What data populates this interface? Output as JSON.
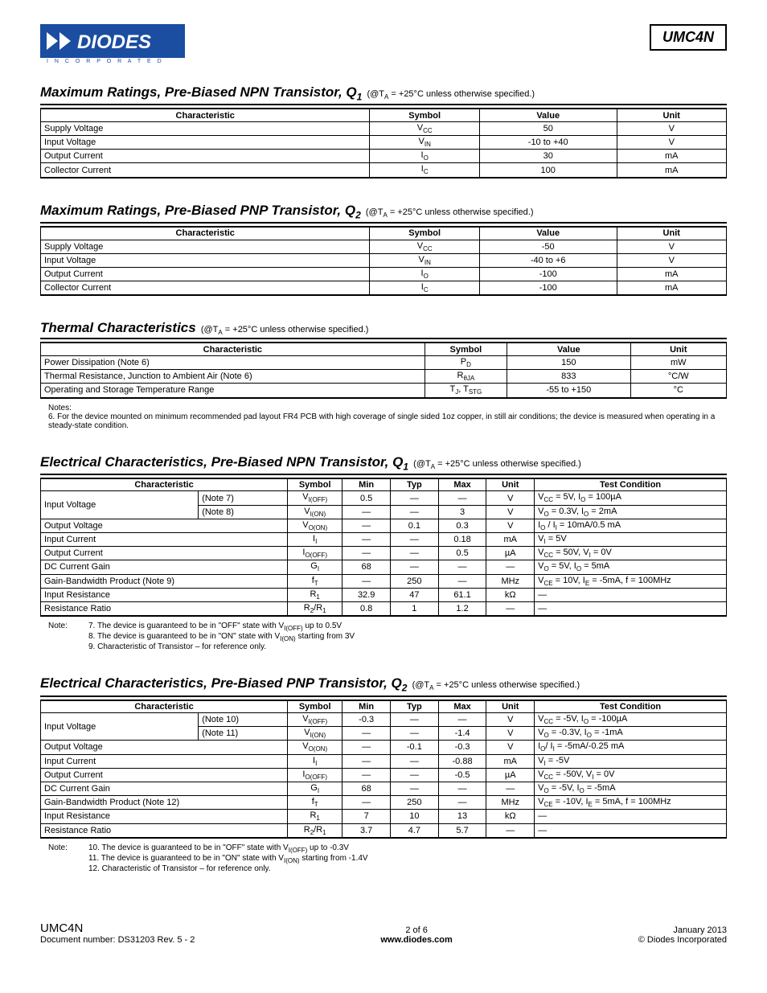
{
  "header": {
    "logo_text_top": "DIODES",
    "logo_text_bottom": "I N C O R P O R A T E D",
    "logo_colors": {
      "bg": "#1b4da0",
      "text": "#ffffff"
    },
    "part_number": "UMC4N"
  },
  "sections": {
    "q1max": {
      "title_html": "Maximum Ratings, Pre-Biased NPN Transistor, Q<sub>1</sub>",
      "cond_html": "(@T<sub>A</sub> = +25°C unless otherwise specified.)",
      "cols": [
        "Characteristic",
        "Symbol",
        "Value",
        "Unit"
      ],
      "col_widths": [
        "48%",
        "16%",
        "20%",
        "16%"
      ],
      "rows": [
        {
          "c": "Supply Voltage",
          "s": "V<sub>CC</sub>",
          "v": "50",
          "u": "V"
        },
        {
          "c": "Input Voltage",
          "s": "V<sub>IN</sub>",
          "v": "-10 to +40",
          "u": "V"
        },
        {
          "c": "Output Current",
          "s": "I<sub>O</sub>",
          "v": "30",
          "u": "mA"
        },
        {
          "c": "Collector Current",
          "s": "I<sub>C</sub>",
          "v": "100",
          "u": "mA"
        }
      ]
    },
    "q2max": {
      "title_html": "Maximum Ratings, Pre-Biased PNP Transistor, Q<sub>2</sub>",
      "cond_html": "(@T<sub>A</sub> = +25°C unless otherwise specified.)",
      "cols": [
        "Characteristic",
        "Symbol",
        "Value",
        "Unit"
      ],
      "col_widths": [
        "48%",
        "16%",
        "20%",
        "16%"
      ],
      "rows": [
        {
          "c": "Supply Voltage",
          "s": "V<sub>CC</sub>",
          "v": "-50",
          "u": "V"
        },
        {
          "c": "Input Voltage",
          "s": "V<sub>IN</sub>",
          "v": "-40 to +6",
          "u": "V"
        },
        {
          "c": "Output Current",
          "s": "I<sub>O</sub>",
          "v": "-100",
          "u": "mA"
        },
        {
          "c": "Collector Current",
          "s": "I<sub>C</sub>",
          "v": "-100",
          "u": "mA"
        }
      ]
    },
    "thermal": {
      "title_html": "Thermal Characteristics",
      "cond_html": "(@T<sub>A</sub> = +25°C unless otherwise specified.)",
      "cols": [
        "Characteristic",
        "Symbol",
        "Value",
        "Unit"
      ],
      "col_widths": [
        "56%",
        "12%",
        "18%",
        "14%"
      ],
      "rows": [
        {
          "c": "Power Dissipation (Note 6)",
          "s": "P<sub>D</sub>",
          "v": "150",
          "u": "mW"
        },
        {
          "c": "Thermal Resistance, Junction to Ambient Air (Note 6)",
          "s": "R<sub>θJA</sub>",
          "v": "833",
          "u": "°C/W"
        },
        {
          "c": "Operating and Storage Temperature Range",
          "s": "T<sub>J</sub>, T<sub>STG</sub>",
          "v": "-55 to +150",
          "u": "°C"
        }
      ],
      "notes_label": "Notes:",
      "notes": [
        "6. For the device mounted on minimum recommended pad layout FR4 PCB with high coverage of single sided 1oz copper, in still air conditions; the device is measured when operating in a steady-state condition."
      ]
    },
    "q1elec": {
      "title_html": "Electrical Characteristics, Pre-Biased NPN Transistor, Q<sub>1</sub>",
      "cond_html": "(@T<sub>A</sub> = +25°C unless otherwise specified.)",
      "cols": [
        "Characteristic",
        "Symbol",
        "Min",
        "Typ",
        "Max",
        "Unit",
        "Test Condition"
      ],
      "col_widths": [
        "23%",
        "13%",
        "8%",
        "7%",
        "7%",
        "7%",
        "7%",
        "28%"
      ],
      "rows": [
        {
          "c": "Input Voltage",
          "note": "(Note 7)",
          "s": "V<sub>I(OFF)</sub>",
          "min": "0.5",
          "typ": "—",
          "max": "—",
          "u": "V",
          "tc": "V<sub>CC</sub> = 5V, I<sub>O</sub> = 100µA",
          "rowspan": 2
        },
        {
          "note": "(Note 8)",
          "s": "V<sub>I(ON)</sub>",
          "min": "—",
          "typ": "—",
          "max": "3",
          "u": "V",
          "tc": "V<sub>O</sub> = 0.3V, I<sub>O</sub> = 2mA"
        },
        {
          "c": "Output Voltage",
          "s": "V<sub>O(ON)</sub>",
          "min": "—",
          "typ": "0.1",
          "max": "0.3",
          "u": "V",
          "tc": "I<sub>O</sub> / I<sub>I</sub> = 10mA/0.5 mA"
        },
        {
          "c": "Input Current",
          "s": "I<sub>I</sub>",
          "min": "—",
          "typ": "—",
          "max": "0.18",
          "u": "mA",
          "tc": "V<sub>I</sub> = 5V"
        },
        {
          "c": "Output Current",
          "s": "I<sub>O(OFF)</sub>",
          "min": "—",
          "typ": "—",
          "max": "0.5",
          "u": "µA",
          "tc": "V<sub>CC</sub> = 50V, V<sub>I</sub> = 0V"
        },
        {
          "c": "DC Current Gain",
          "s": "G<sub>I</sub>",
          "min": "68",
          "typ": "—",
          "max": "—",
          "u": "—",
          "tc": "V<sub>O</sub> = 5V, I<sub>O</sub> = 5mA"
        },
        {
          "c": "Gain-Bandwidth Product (Note 9)",
          "s": "f<sub>T</sub>",
          "min": "—",
          "typ": "250",
          "max": "—",
          "u": "MHz",
          "tc": "V<sub>CE</sub> = 10V, I<sub>E</sub> = -5mA, f = 100MHz"
        },
        {
          "c": "Input Resistance",
          "s": "R<sub>1</sub>",
          "min": "32.9",
          "typ": "47",
          "max": "61.1",
          "u": "kΩ",
          "tc": "—"
        },
        {
          "c": "Resistance Ratio",
          "s": "R<sub>2</sub>/R<sub>1</sub>",
          "min": "0.8",
          "typ": "1",
          "max": "1.2",
          "u": "—",
          "tc": "—"
        }
      ],
      "notes_label": "Note:",
      "notes": [
        "7. The device is guaranteed to be in \"OFF\" state with V<sub>I(OFF)</sub> up to 0.5V",
        "8. The device is guaranteed to be in \"ON\" state with V<sub>I(ON)</sub> starting from 3V",
        "9. Characteristic of Transistor – for reference only."
      ]
    },
    "q2elec": {
      "title_html": "Electrical Characteristics, Pre-Biased PNP Transistor, Q<sub>2</sub>",
      "cond_html": "(@T<sub>A</sub> = +25°C unless otherwise specified.)",
      "cols": [
        "Characteristic",
        "Symbol",
        "Min",
        "Typ",
        "Max",
        "Unit",
        "Test Condition"
      ],
      "col_widths": [
        "23%",
        "13%",
        "8%",
        "7%",
        "7%",
        "7%",
        "7%",
        "28%"
      ],
      "rows": [
        {
          "c": "Input Voltage",
          "note": "(Note 10)",
          "s": "V<sub>I(OFF)</sub>",
          "min": "-0.3",
          "typ": "—",
          "max": "—",
          "u": "V",
          "tc": "V<sub>CC</sub> = -5V, I<sub>O</sub> = -100µA",
          "rowspan": 2
        },
        {
          "note": "(Note 11)",
          "s": "V<sub>I(ON)</sub>",
          "min": "—",
          "typ": "—",
          "max": "-1.4",
          "u": "V",
          "tc": "V<sub>O</sub> = -0.3V, I<sub>O</sub> = -1mA"
        },
        {
          "c": "Output Voltage",
          "s": "V<sub>O(ON)</sub>",
          "min": "—",
          "typ": "-0.1",
          "max": "-0.3",
          "u": "V",
          "tc": "I<sub>O</sub>/ I<sub>I</sub> = -5mA/-0.25 mA"
        },
        {
          "c": "Input Current",
          "s": "I<sub>I</sub>",
          "min": "—",
          "typ": "—",
          "max": "-0.88",
          "u": "mA",
          "tc": "V<sub>I</sub> = -5V"
        },
        {
          "c": "Output Current",
          "s": "I<sub>O(OFF)</sub>",
          "min": "—",
          "typ": "—",
          "max": "-0.5",
          "u": "µA",
          "tc": "V<sub>CC</sub> = -50V, V<sub>I</sub> = 0V"
        },
        {
          "c": "DC Current Gain",
          "s": "G<sub>I</sub>",
          "min": "68",
          "typ": "—",
          "max": "—",
          "u": "—",
          "tc": "V<sub>O</sub> = -5V, I<sub>O</sub> = -5mA"
        },
        {
          "c": "Gain-Bandwidth Product (Note 12)",
          "s": "f<sub>T</sub>",
          "min": "—",
          "typ": "250",
          "max": "—",
          "u": "MHz",
          "tc": "V<sub>CE</sub> = -10V, I<sub>E</sub> = 5mA, f = 100MHz"
        },
        {
          "c": "Input Resistance",
          "s": "R<sub>1</sub>",
          "min": "7",
          "typ": "10",
          "max": "13",
          "u": "kΩ",
          "tc": "—"
        },
        {
          "c": "Resistance Ratio",
          "s": "R<sub>2</sub>/R<sub>1</sub>",
          "min": "3.7",
          "typ": "4.7",
          "max": "5.7",
          "u": "—",
          "tc": "—"
        }
      ],
      "notes_label": "Note:",
      "notes": [
        "10. The device is guaranteed to be in \"OFF\" state with V<sub>I(OFF)</sub> up to -0.3V",
        "11. The device is guaranteed to be in \"ON\" state with V<sub>I(ON)</sub> starting from -1.4V",
        "12. Characteristic of Transistor – for reference only."
      ]
    }
  },
  "footer": {
    "left_big": "UMC4N",
    "left_small": "Document number: DS31203 Rev. 5 - 2",
    "center_top": "2 of 6",
    "center_bottom": "www.diodes.com",
    "right_top": "January 2013",
    "right_bottom": "© Diodes Incorporated"
  }
}
